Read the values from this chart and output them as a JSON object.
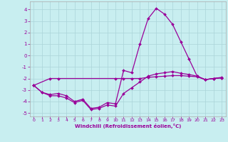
{
  "xlabel": "Windchill (Refroidissement éolien,°C)",
  "bg_color": "#c8eef0",
  "grid_color": "#aad4d8",
  "line_color": "#990099",
  "xlim": [
    -0.5,
    23.5
  ],
  "ylim": [
    -5.3,
    4.7
  ],
  "yticks": [
    -5,
    -4,
    -3,
    -2,
    -1,
    0,
    1,
    2,
    3,
    4
  ],
  "xticks": [
    0,
    1,
    2,
    3,
    4,
    5,
    6,
    7,
    8,
    9,
    10,
    11,
    12,
    13,
    14,
    15,
    16,
    17,
    18,
    19,
    20,
    21,
    22,
    23
  ],
  "line1_x": [
    0,
    1,
    2,
    3,
    4,
    5,
    6,
    7,
    8,
    9,
    10,
    11,
    12,
    13,
    14,
    15,
    16,
    17,
    18,
    19,
    20,
    21,
    22,
    23
  ],
  "line1_y": [
    -2.6,
    -3.2,
    -3.4,
    -3.3,
    -3.5,
    -4.0,
    -3.8,
    -4.6,
    -4.5,
    -4.1,
    -4.2,
    -1.3,
    -1.5,
    1.0,
    3.2,
    4.1,
    3.6,
    2.7,
    1.2,
    -0.3,
    -1.8,
    -2.1,
    -2.0,
    -1.9
  ],
  "line2_x": [
    0,
    2,
    3,
    10,
    11,
    12,
    13,
    14,
    15,
    16,
    17,
    18,
    19,
    20,
    21,
    22,
    23
  ],
  "line2_y": [
    -2.6,
    -2.0,
    -2.0,
    -2.0,
    -2.0,
    -2.0,
    -2.0,
    -1.9,
    -1.85,
    -1.8,
    -1.75,
    -1.75,
    -1.8,
    -1.85,
    -2.1,
    -2.0,
    -1.95
  ],
  "line3_x": [
    0,
    1,
    2,
    3,
    4,
    5,
    6,
    7,
    8,
    9,
    10,
    11,
    12,
    13,
    14,
    15,
    16,
    17,
    18,
    19,
    20,
    21,
    22,
    23
  ],
  "line3_y": [
    -2.6,
    -3.2,
    -3.5,
    -3.5,
    -3.7,
    -4.1,
    -3.9,
    -4.7,
    -4.6,
    -4.3,
    -4.4,
    -3.3,
    -2.8,
    -2.3,
    -1.8,
    -1.6,
    -1.5,
    -1.4,
    -1.55,
    -1.65,
    -1.8,
    -2.1,
    -2.0,
    -1.95
  ]
}
